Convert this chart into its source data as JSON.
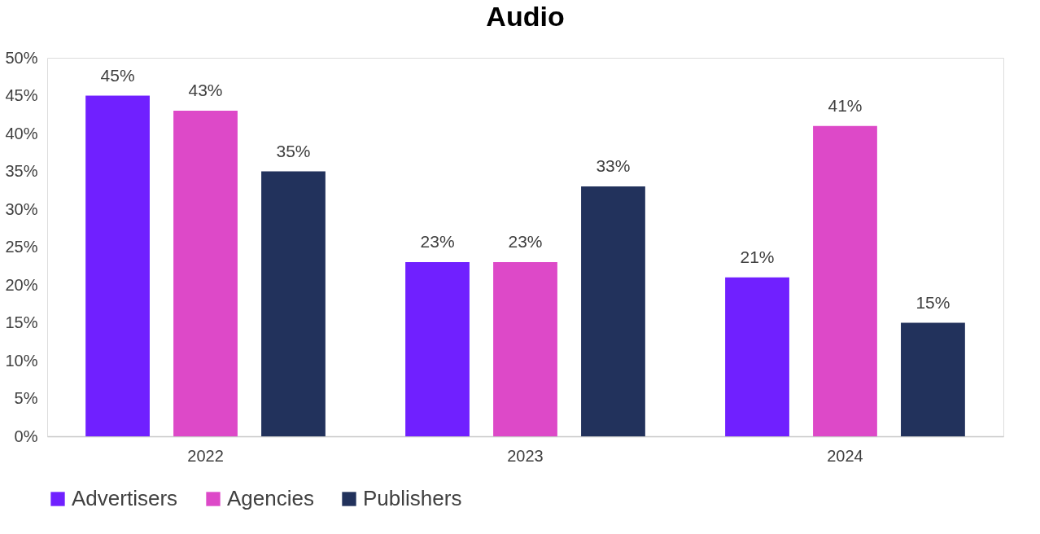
{
  "chart_data": {
    "type": "bar",
    "title": "Audio",
    "categories": [
      "2022",
      "2023",
      "2024"
    ],
    "series": [
      {
        "name": "Advertisers",
        "color": "#7020ff",
        "values": [
          45,
          23,
          21
        ],
        "value_labels": [
          "45%",
          "23%",
          "21%"
        ]
      },
      {
        "name": "Agencies",
        "color": "#dd49c8",
        "values": [
          43,
          23,
          41
        ],
        "value_labels": [
          "43%",
          "23%",
          "41%"
        ]
      },
      {
        "name": "Publishers",
        "color": "#22325c",
        "values": [
          35,
          33,
          15
        ],
        "value_labels": [
          "35%",
          "33%",
          "15%"
        ]
      }
    ],
    "ylim": [
      0,
      50
    ],
    "yticks": [
      {
        "value": 0,
        "label": "0%"
      },
      {
        "value": 5,
        "label": "5%"
      },
      {
        "value": 10,
        "label": "10%"
      },
      {
        "value": 15,
        "label": "15%"
      },
      {
        "value": 20,
        "label": "20%"
      },
      {
        "value": 25,
        "label": "25%"
      },
      {
        "value": 30,
        "label": "30%"
      },
      {
        "value": 35,
        "label": "35%"
      },
      {
        "value": 40,
        "label": "40%"
      },
      {
        "value": 45,
        "label": "45%"
      },
      {
        "value": 50,
        "label": "50%"
      }
    ],
    "grid": false,
    "legend": "bottom"
  }
}
